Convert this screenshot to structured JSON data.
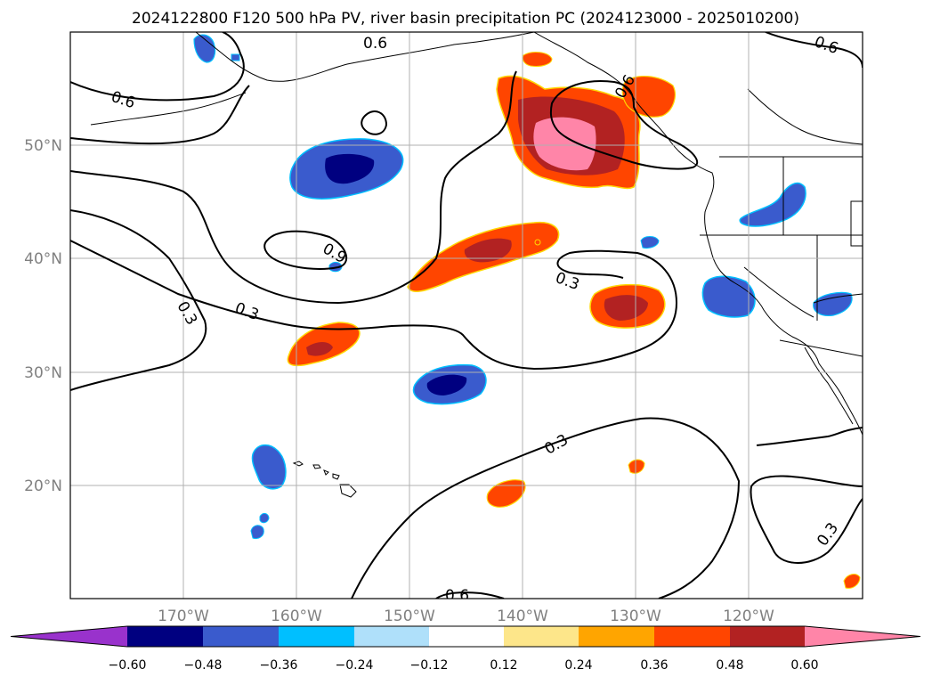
{
  "title": "2024122800 F120 500 hPa PV, river basin precipitation PC (2024123000 - 2025010200)",
  "lat_labels": [
    "50°N",
    "40°N",
    "30°N",
    "20°N"
  ],
  "lon_labels": [
    "170°W",
    "160°W",
    "150°W",
    "140°W",
    "130°W",
    "120°W"
  ],
  "contour_labels": {
    "nw_06": "0.6",
    "ne_06": "0.6",
    "top_06": "0.6",
    "coast_06": "0.6",
    "mid_09": "0.9",
    "left_03": "0.3",
    "left2_03": "0.3",
    "east_03": "0.3",
    "south_03": "0.3",
    "se_03": "0.3",
    "bottom_06": "0.6"
  },
  "colorbar": {
    "ticks": [
      "−0.60",
      "−0.48",
      "−0.36",
      "−0.24",
      "−0.12",
      "0.12",
      "0.24",
      "0.36",
      "0.48",
      "0.60"
    ],
    "colors": [
      "#9932cc",
      "#000080",
      "#3a5bcd",
      "#00bfff",
      "#afe0fa",
      "#ffffff",
      "#fde68a",
      "#ffa500",
      "#ff4500",
      "#b22222",
      "#ff85a8"
    ]
  },
  "colors": {
    "grid": "#b0b0b0",
    "axis_label": "#808080"
  }
}
